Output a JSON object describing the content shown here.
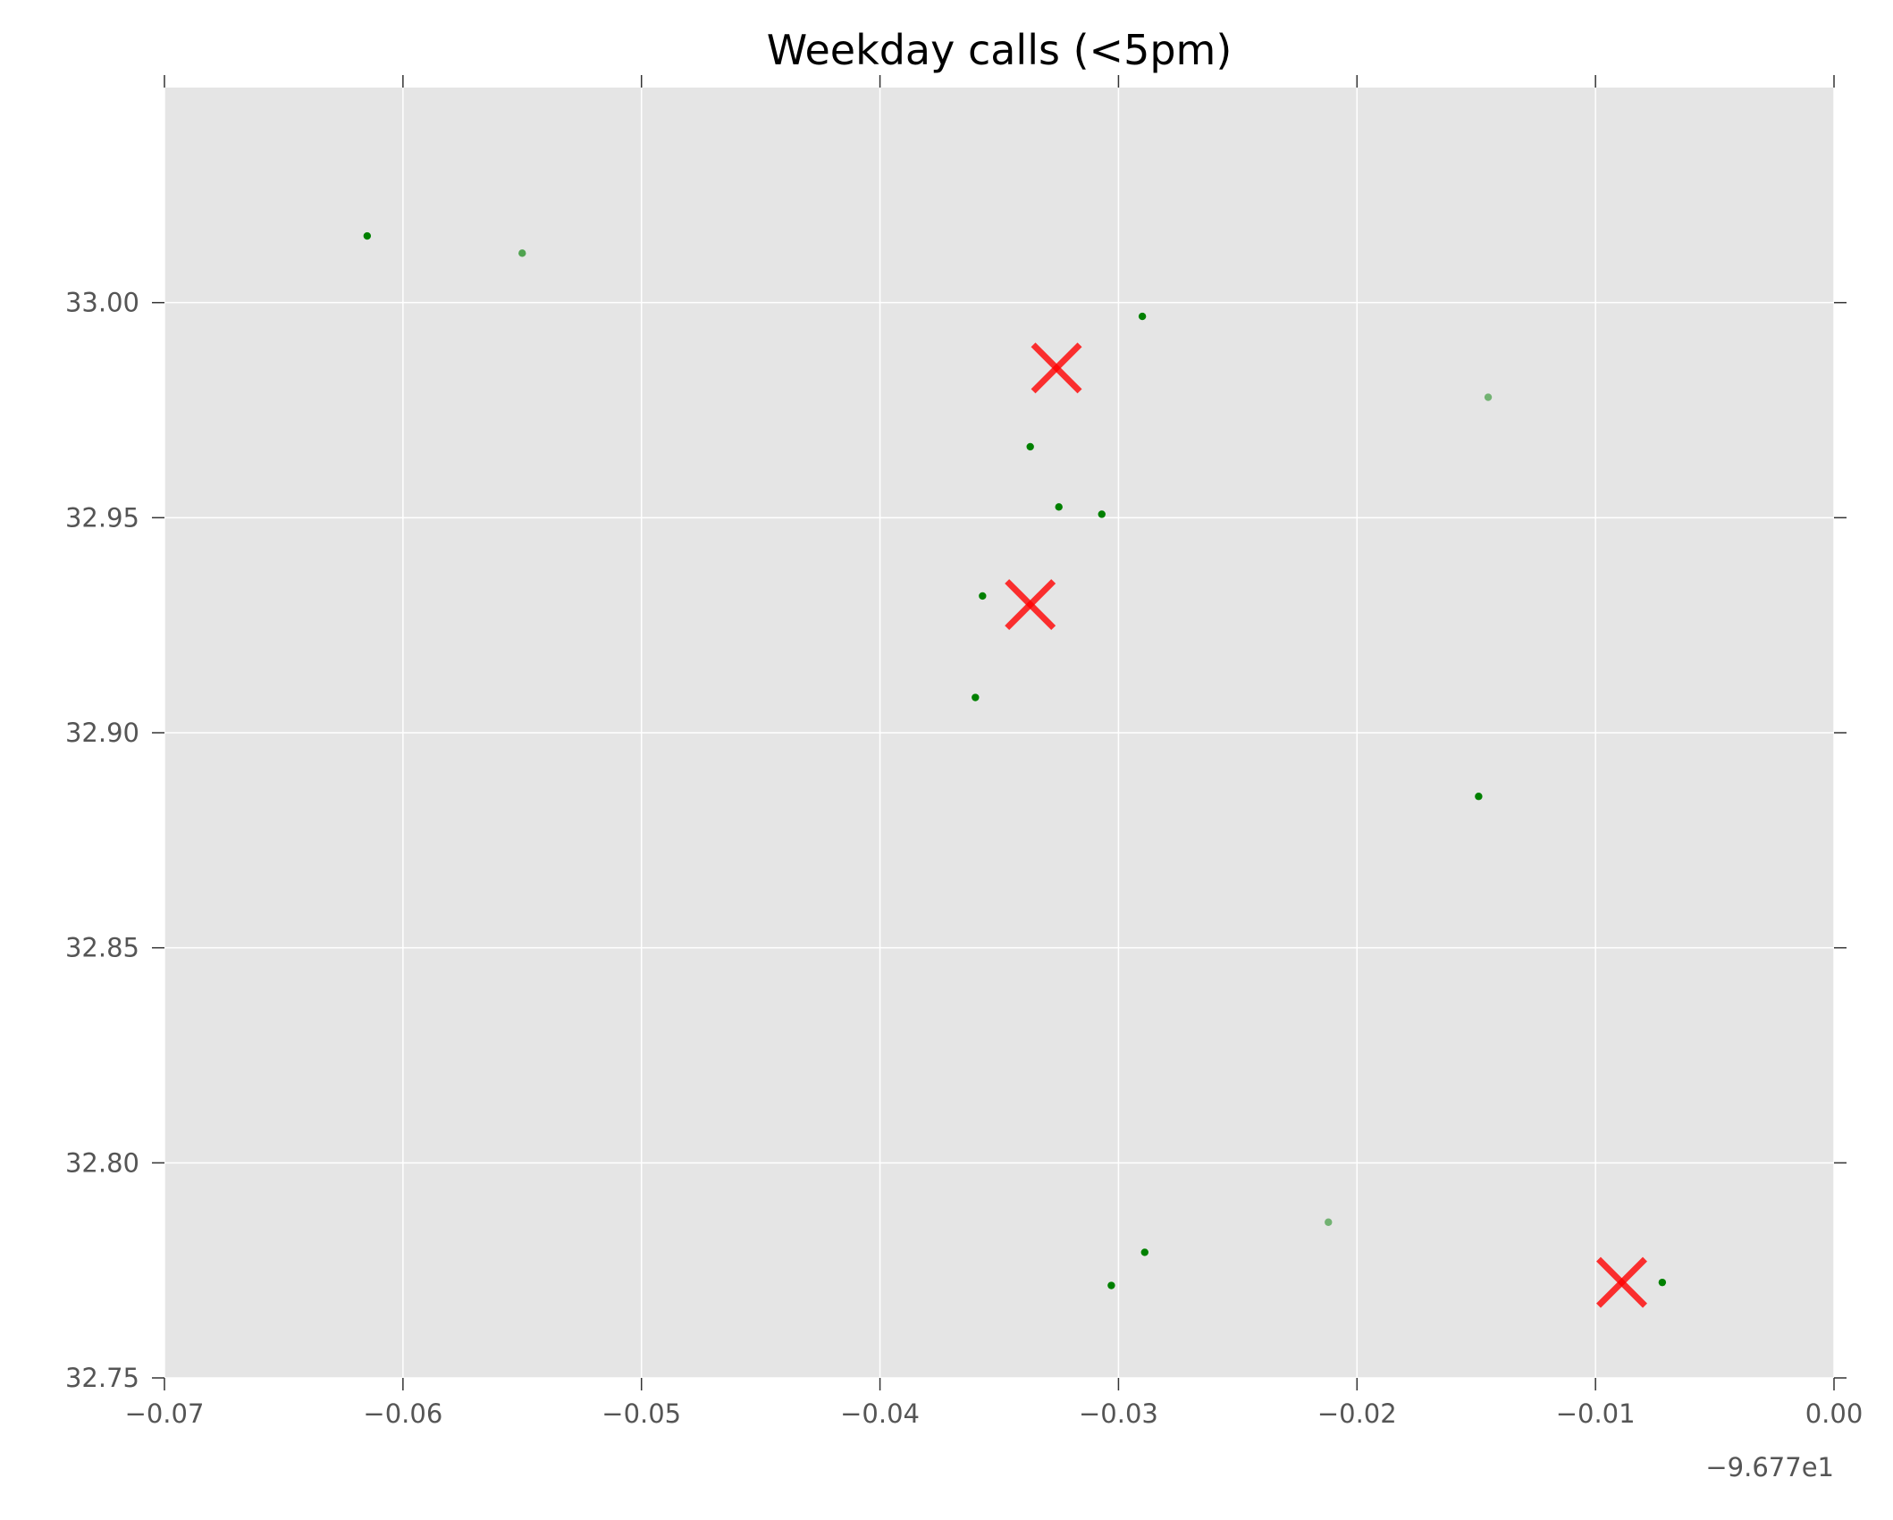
{
  "chart_data": {
    "type": "scatter",
    "title": "Weekday calls (<5pm)",
    "xlabel": "",
    "ylabel": "",
    "x_offset_label": "−9.677e1",
    "xlim": [
      -0.07,
      0.0
    ],
    "ylim": [
      32.75,
      33.05
    ],
    "xticks": [
      -0.07,
      -0.06,
      -0.05,
      -0.04,
      -0.03,
      -0.02,
      -0.01,
      0.0
    ],
    "xtick_labels": [
      "−0.07",
      "−0.06",
      "−0.05",
      "−0.04",
      "−0.03",
      "−0.02",
      "−0.01",
      "0.00"
    ],
    "yticks": [
      32.75,
      32.8,
      32.85,
      32.9,
      32.95,
      33.0
    ],
    "ytick_labels": [
      "32.75",
      "32.80",
      "32.85",
      "32.90",
      "32.95",
      "33.00"
    ],
    "grid": true,
    "background_color": "#e5e5e5",
    "grid_color": "#ffffff",
    "series": [
      {
        "marker": "dot",
        "color": "#008000",
        "points": [
          {
            "x": -0.0615,
            "y": 33.0155,
            "alpha": 1.0
          },
          {
            "x": -0.055,
            "y": 33.0115,
            "alpha": 0.65
          },
          {
            "x": -0.029,
            "y": 32.9968,
            "alpha": 1.0
          },
          {
            "x": -0.0145,
            "y": 32.978,
            "alpha": 0.5
          },
          {
            "x": -0.0337,
            "y": 32.9665,
            "alpha": 1.0
          },
          {
            "x": -0.0325,
            "y": 32.9525,
            "alpha": 1.0
          },
          {
            "x": -0.0307,
            "y": 32.9508,
            "alpha": 1.0
          },
          {
            "x": -0.0357,
            "y": 32.9318,
            "alpha": 1.0
          },
          {
            "x": -0.036,
            "y": 32.9082,
            "alpha": 1.0
          },
          {
            "x": -0.0149,
            "y": 32.8852,
            "alpha": 1.0
          },
          {
            "x": -0.0212,
            "y": 32.7862,
            "alpha": 0.5
          },
          {
            "x": -0.0289,
            "y": 32.7792,
            "alpha": 1.0
          },
          {
            "x": -0.0303,
            "y": 32.7715,
            "alpha": 1.0
          },
          {
            "x": -0.0072,
            "y": 32.7722,
            "alpha": 1.0
          }
        ]
      },
      {
        "marker": "x",
        "color": "#ff0000",
        "points": [
          {
            "x": -0.0326,
            "y": 32.9848
          },
          {
            "x": -0.0337,
            "y": 32.9298
          },
          {
            "x": -0.0089,
            "y": 32.7722
          }
        ]
      }
    ]
  }
}
